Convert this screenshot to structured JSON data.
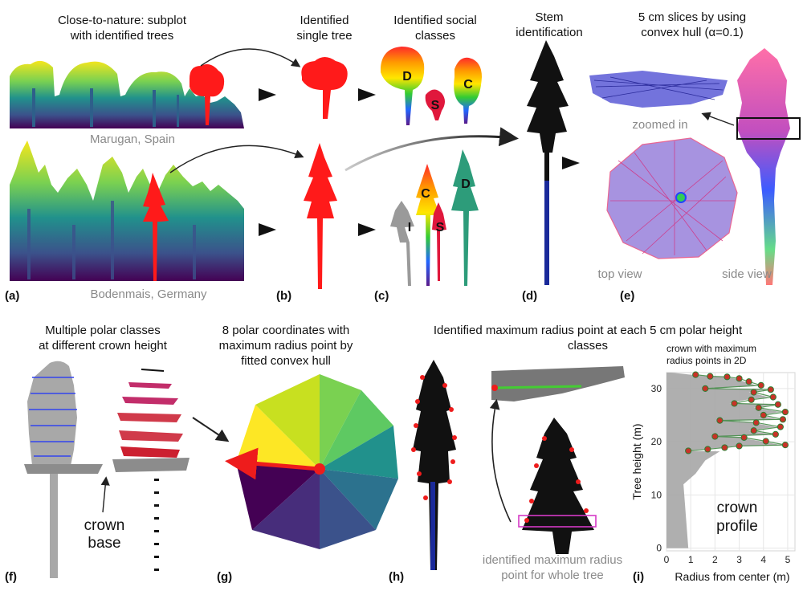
{
  "panels": {
    "a": {
      "label": "(a)",
      "title_l1": "Close-to-nature: subplot",
      "title_l2": "with identified trees",
      "site1": "Marugan, Spain",
      "site2": "Bodenmais, Germany"
    },
    "b": {
      "label": "(b)",
      "title_l1": "Identified",
      "title_l2": "single tree"
    },
    "c": {
      "label": "(c)",
      "title_l1": "Identified social",
      "title_l2": "classes",
      "classes": [
        "D",
        "S",
        "C",
        "C",
        "D",
        "I",
        "S"
      ]
    },
    "d": {
      "label": "(d)",
      "title_l1": "Stem",
      "title_l2": "identification"
    },
    "e": {
      "label": "(e)",
      "title_l1": "5 cm slices by using",
      "title_l2": "convex hull (α=0.1)",
      "zoomed": "zoomed in",
      "top_view": "top view",
      "side_view": "side view"
    },
    "f": {
      "label": "(f)",
      "title_l1": "Multiple polar classes",
      "title_l2": "at different crown height",
      "crown_l1": "crown",
      "crown_l2": "base"
    },
    "g": {
      "label": "(g)",
      "title_l1": "8 polar coordinates with",
      "title_l2": "maximum radius point by",
      "title_l3": "fitted convex hull"
    },
    "h": {
      "label": "(h)",
      "title_l1": "Identified maximum radius point at each 5 cm polar height",
      "title_l2": "classes",
      "note_l1": "identified maximum radius",
      "note_l2": "point for whole tree"
    },
    "i": {
      "label": "(i)",
      "inset_l1": "crown with maximum",
      "inset_l2": "radius points in 2D",
      "profile_l1": "crown",
      "profile_l2": "profile",
      "ylabel": "Tree height (m)",
      "xlabel": "Radius from center (m)"
    }
  },
  "colors": {
    "red": "#ff1a1a",
    "black": "#111111",
    "gray": "#9a9a9a",
    "viridis_top": "#f5e61c",
    "viridis_mid": "#21918c",
    "viridis_bottom": "#440154",
    "max_point": "#c83228",
    "max_point_edge": "#2e7d32"
  },
  "chart_data": {
    "type": "scatter",
    "title": "",
    "xlabel": "Radius from center (m)",
    "ylabel": "Tree height (m)",
    "xlim": [
      0,
      5.3
    ],
    "ylim": [
      -0.5,
      33
    ],
    "xticks": [
      0,
      1,
      2,
      3,
      4,
      5
    ],
    "yticks": [
      0,
      10,
      20,
      30
    ],
    "grid": true,
    "series": [
      {
        "values": [
          {
            "x": 1.2,
            "y": 32.6
          },
          {
            "x": 1.8,
            "y": 32.3
          },
          {
            "x": 2.5,
            "y": 32.2
          },
          {
            "x": 3.0,
            "y": 31.9
          },
          {
            "x": 3.4,
            "y": 31.3
          },
          {
            "x": 3.9,
            "y": 30.6
          },
          {
            "x": 4.3,
            "y": 29.8
          },
          {
            "x": 3.6,
            "y": 29.3
          },
          {
            "x": 4.4,
            "y": 28.4
          },
          {
            "x": 3.5,
            "y": 27.9
          },
          {
            "x": 4.6,
            "y": 27.0
          },
          {
            "x": 3.8,
            "y": 26.4
          },
          {
            "x": 4.9,
            "y": 25.6
          },
          {
            "x": 4.0,
            "y": 25.0
          },
          {
            "x": 4.8,
            "y": 24.2
          },
          {
            "x": 3.7,
            "y": 23.6
          },
          {
            "x": 4.7,
            "y": 22.8
          },
          {
            "x": 3.6,
            "y": 22.1
          },
          {
            "x": 4.5,
            "y": 21.4
          },
          {
            "x": 3.2,
            "y": 20.8
          },
          {
            "x": 4.1,
            "y": 20.1
          },
          {
            "x": 4.9,
            "y": 19.4
          },
          {
            "x": 3.0,
            "y": 19.2
          },
          {
            "x": 2.4,
            "y": 18.9
          },
          {
            "x": 1.7,
            "y": 18.6
          },
          {
            "x": 0.9,
            "y": 18.3
          },
          {
            "x": 2.2,
            "y": 24.0
          },
          {
            "x": 2.8,
            "y": 27.2
          },
          {
            "x": 1.6,
            "y": 30.0
          },
          {
            "x": 2.0,
            "y": 21.0
          }
        ]
      }
    ]
  }
}
